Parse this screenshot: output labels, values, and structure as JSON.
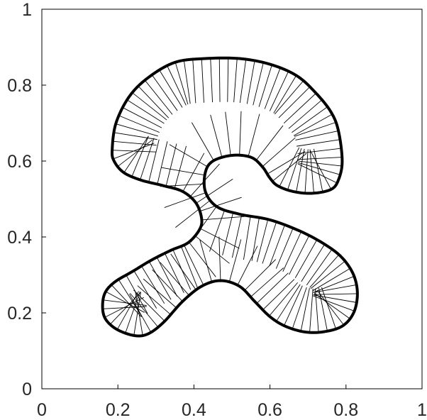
{
  "chart_data": {
    "type": "line",
    "title": "",
    "xlabel": "",
    "ylabel": "",
    "xlim": [
      0,
      1
    ],
    "ylim": [
      0,
      1
    ],
    "grid": false,
    "legend": "none",
    "x_ticks": [
      0,
      0.2,
      0.4,
      0.6,
      0.8,
      1
    ],
    "x_tick_labels": [
      "0",
      "0.2",
      "0.4",
      "0.6",
      "0.8",
      "1"
    ],
    "y_ticks": [
      0,
      0.2,
      0.4,
      0.6,
      0.8,
      1
    ],
    "y_tick_labels": [
      "0",
      "0.2",
      "0.4",
      "0.6",
      "0.8",
      "1"
    ],
    "curve_color": "#000000",
    "normal_color": "#000000",
    "series": [
      {
        "kind": "closed-curve",
        "points": [
          [
            0.47,
            0.285
          ],
          [
            0.42,
            0.27
          ],
          [
            0.37,
            0.23
          ],
          [
            0.32,
            0.175
          ],
          [
            0.28,
            0.145
          ],
          [
            0.245,
            0.14
          ],
          [
            0.2,
            0.155
          ],
          [
            0.17,
            0.18
          ],
          [
            0.16,
            0.21
          ],
          [
            0.165,
            0.25
          ],
          [
            0.19,
            0.28
          ],
          [
            0.24,
            0.31
          ],
          [
            0.29,
            0.34
          ],
          [
            0.34,
            0.365
          ],
          [
            0.385,
            0.385
          ],
          [
            0.415,
            0.42
          ],
          [
            0.42,
            0.45
          ],
          [
            0.405,
            0.49
          ],
          [
            0.37,
            0.52
          ],
          [
            0.32,
            0.535
          ],
          [
            0.26,
            0.55
          ],
          [
            0.215,
            0.57
          ],
          [
            0.19,
            0.6
          ],
          [
            0.185,
            0.63
          ],
          [
            0.195,
            0.7
          ],
          [
            0.23,
            0.77
          ],
          [
            0.28,
            0.82
          ],
          [
            0.35,
            0.86
          ],
          [
            0.43,
            0.87
          ],
          [
            0.52,
            0.87
          ],
          [
            0.6,
            0.855
          ],
          [
            0.67,
            0.825
          ],
          [
            0.72,
            0.78
          ],
          [
            0.76,
            0.73
          ],
          [
            0.78,
            0.68
          ],
          [
            0.79,
            0.6
          ],
          [
            0.78,
            0.55
          ],
          [
            0.76,
            0.525
          ],
          [
            0.71,
            0.515
          ],
          [
            0.66,
            0.52
          ],
          [
            0.62,
            0.535
          ],
          [
            0.6,
            0.555
          ],
          [
            0.58,
            0.585
          ],
          [
            0.55,
            0.61
          ],
          [
            0.5,
            0.615
          ],
          [
            0.45,
            0.6
          ],
          [
            0.43,
            0.57
          ],
          [
            0.43,
            0.52
          ],
          [
            0.46,
            0.48
          ],
          [
            0.52,
            0.46
          ],
          [
            0.6,
            0.445
          ],
          [
            0.68,
            0.415
          ],
          [
            0.745,
            0.38
          ],
          [
            0.79,
            0.345
          ],
          [
            0.82,
            0.3
          ],
          [
            0.83,
            0.25
          ],
          [
            0.82,
            0.2
          ],
          [
            0.79,
            0.165
          ],
          [
            0.74,
            0.15
          ],
          [
            0.69,
            0.15
          ],
          [
            0.64,
            0.165
          ],
          [
            0.6,
            0.19
          ],
          [
            0.56,
            0.23
          ],
          [
            0.52,
            0.27
          ]
        ]
      }
    ]
  }
}
